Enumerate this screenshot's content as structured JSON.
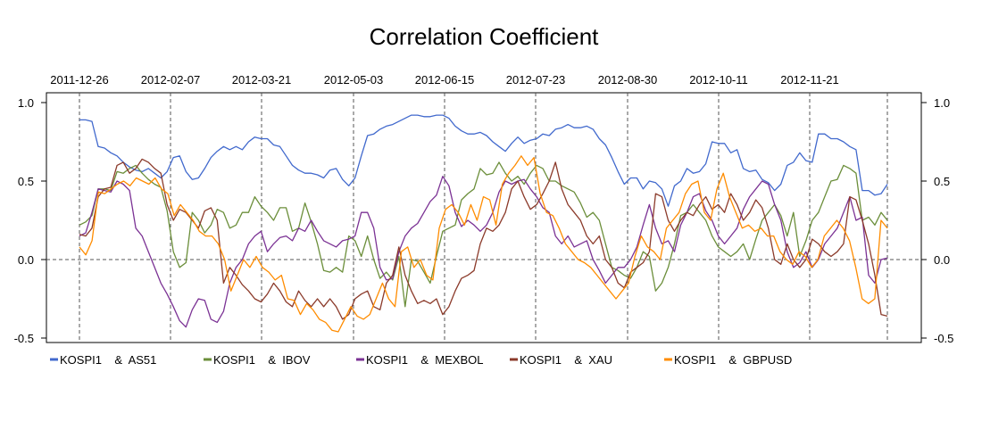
{
  "chart_data": {
    "type": "line",
    "title": "Correlation Coefficient",
    "x_tick_labels": [
      "2011-12-26",
      "2012-02-07",
      "2012-03-21",
      "2012-05-03",
      "2012-06-15",
      "2012-07-23",
      "2012-08-30",
      "2012-10-11",
      "2012-11-21"
    ],
    "y_ticks": [
      "-0.5",
      "0.0",
      "0.5",
      "1.0"
    ],
    "ylim": [
      -0.5,
      1.0
    ],
    "grid": "dashed vertical lines at date ticks, dashed horizontal line at 0.0",
    "legend_placement": "bottom",
    "series": [
      {
        "name": "KOSPI1    &  AS51",
        "color": "#4169cd",
        "values": [
          0.89,
          0.89,
          0.88,
          0.72,
          0.71,
          0.68,
          0.66,
          0.62,
          0.59,
          0.57,
          0.56,
          0.58,
          0.55,
          0.52,
          0.56,
          0.65,
          0.66,
          0.56,
          0.51,
          0.52,
          0.58,
          0.65,
          0.69,
          0.72,
          0.7,
          0.72,
          0.7,
          0.75,
          0.78,
          0.77,
          0.77,
          0.73,
          0.72,
          0.66,
          0.6,
          0.57,
          0.55,
          0.55,
          0.54,
          0.52,
          0.57,
          0.58,
          0.51,
          0.47,
          0.52,
          0.66,
          0.79,
          0.8,
          0.83,
          0.85,
          0.86,
          0.88,
          0.9,
          0.92,
          0.92,
          0.91,
          0.91,
          0.92,
          0.92,
          0.9,
          0.85,
          0.82,
          0.8,
          0.8,
          0.81,
          0.79,
          0.75,
          0.72,
          0.69,
          0.74,
          0.78,
          0.74,
          0.76,
          0.77,
          0.8,
          0.79,
          0.83,
          0.84,
          0.86,
          0.84,
          0.84,
          0.85,
          0.83,
          0.77,
          0.73,
          0.65,
          0.56,
          0.48,
          0.52,
          0.52,
          0.45,
          0.5,
          0.49,
          0.45,
          0.34,
          0.47,
          0.5,
          0.58,
          0.55,
          0.56,
          0.61,
          0.75,
          0.74,
          0.74,
          0.68,
          0.7,
          0.58,
          0.56,
          0.57,
          0.51,
          0.49,
          0.44,
          0.48,
          0.6,
          0.62,
          0.68,
          0.63,
          0.62,
          0.8,
          0.8,
          0.77,
          0.77,
          0.75,
          0.72,
          0.7,
          0.44,
          0.44,
          0.41,
          0.42,
          0.48
        ]
      },
      {
        "name": "KOSPI1    &  IBOV",
        "color": "#6b8e3a",
        "values": [
          0.22,
          0.24,
          0.28,
          0.45,
          0.45,
          0.44,
          0.56,
          0.55,
          0.58,
          0.6,
          0.55,
          0.51,
          0.48,
          0.46,
          0.31,
          0.05,
          -0.05,
          -0.02,
          0.3,
          0.25,
          0.17,
          0.22,
          0.32,
          0.3,
          0.2,
          0.22,
          0.3,
          0.3,
          0.4,
          0.34,
          0.3,
          0.25,
          0.33,
          0.33,
          0.18,
          0.2,
          0.36,
          0.24,
          0.1,
          -0.07,
          -0.08,
          -0.05,
          -0.08,
          0.15,
          0.12,
          0.02,
          0.15,
          0.0,
          -0.12,
          -0.08,
          -0.13,
          0.02,
          -0.3,
          0.0,
          -0.01,
          -0.08,
          -0.15,
          0.02,
          0.18,
          0.2,
          0.22,
          0.38,
          0.42,
          0.45,
          0.58,
          0.54,
          0.55,
          0.62,
          0.55,
          0.5,
          0.53,
          0.48,
          0.55,
          0.6,
          0.58,
          0.5,
          0.5,
          0.47,
          0.45,
          0.43,
          0.36,
          0.27,
          0.3,
          0.25,
          0.1,
          -0.05,
          -0.07,
          -0.1,
          -0.12,
          -0.05,
          0.05,
          0.02,
          -0.2,
          -0.15,
          -0.05,
          0.1,
          0.28,
          0.3,
          0.35,
          0.3,
          0.25,
          0.15,
          0.08,
          0.05,
          0.02,
          0.05,
          0.1,
          0.0,
          0.13,
          0.25,
          0.3,
          0.35,
          0.28,
          0.15,
          0.3,
          0.02,
          0.12,
          0.25,
          0.3,
          0.4,
          0.5,
          0.51,
          0.6,
          0.58,
          0.55,
          0.25,
          0.27,
          0.22,
          0.3,
          0.25
        ]
      },
      {
        "name": "KOSPI1    &  MEXBOL",
        "color": "#7b3294",
        "values": [
          0.15,
          0.17,
          0.3,
          0.45,
          0.44,
          0.43,
          0.5,
          0.48,
          0.44,
          0.2,
          0.15,
          0.05,
          -0.05,
          -0.15,
          -0.22,
          -0.3,
          -0.39,
          -0.43,
          -0.32,
          -0.25,
          -0.26,
          -0.38,
          -0.4,
          -0.33,
          -0.15,
          -0.05,
          0.0,
          0.1,
          0.15,
          0.18,
          0.05,
          0.1,
          0.14,
          0.15,
          0.12,
          0.2,
          0.18,
          0.25,
          0.18,
          0.12,
          0.1,
          0.08,
          0.12,
          0.13,
          0.15,
          0.3,
          0.3,
          0.2,
          -0.05,
          -0.13,
          -0.12,
          0.05,
          0.15,
          0.2,
          0.23,
          0.3,
          0.37,
          0.41,
          0.53,
          0.47,
          0.3,
          0.21,
          0.25,
          0.22,
          0.18,
          0.22,
          0.3,
          0.43,
          0.5,
          0.48,
          0.5,
          0.51,
          0.45,
          0.4,
          0.33,
          0.3,
          0.15,
          0.1,
          0.15,
          0.08,
          0.1,
          0.12,
          0.0,
          -0.07,
          -0.15,
          -0.1,
          -0.05,
          -0.05,
          0.0,
          0.08,
          0.22,
          0.35,
          0.2,
          0.1,
          0.12,
          0.05,
          0.22,
          0.3,
          0.4,
          0.42,
          0.31,
          0.25,
          0.15,
          0.1,
          0.15,
          0.2,
          0.32,
          0.4,
          0.45,
          0.5,
          0.48,
          0.35,
          0.25,
          0.05,
          -0.05,
          -0.02,
          0.05,
          -0.05,
          0.0,
          0.1,
          0.15,
          0.2,
          0.3,
          0.4,
          0.25,
          0.27,
          -0.1,
          -0.15,
          0.0,
          0.01
        ]
      },
      {
        "name": "KOSPI1    &  XAU",
        "color": "#8b3a2a",
        "values": [
          0.16,
          0.15,
          0.2,
          0.4,
          0.45,
          0.46,
          0.6,
          0.62,
          0.55,
          0.58,
          0.64,
          0.62,
          0.58,
          0.55,
          0.35,
          0.25,
          0.32,
          0.3,
          0.25,
          0.2,
          0.31,
          0.33,
          0.25,
          -0.15,
          -0.05,
          -0.1,
          -0.16,
          -0.2,
          -0.25,
          -0.27,
          -0.22,
          -0.15,
          -0.2,
          -0.27,
          -0.3,
          -0.2,
          -0.26,
          -0.3,
          -0.25,
          -0.3,
          -0.25,
          -0.3,
          -0.38,
          -0.35,
          -0.25,
          -0.22,
          -0.2,
          -0.3,
          -0.32,
          -0.15,
          -0.1,
          0.08,
          -0.1,
          -0.2,
          -0.28,
          -0.26,
          -0.28,
          -0.25,
          -0.35,
          -0.3,
          -0.2,
          -0.12,
          -0.1,
          -0.07,
          0.1,
          0.2,
          0.18,
          0.22,
          0.3,
          0.45,
          0.5,
          0.4,
          0.32,
          0.35,
          0.42,
          0.5,
          0.62,
          0.45,
          0.35,
          0.3,
          0.25,
          0.15,
          0.1,
          0.15,
          0.0,
          -0.05,
          -0.15,
          -0.18,
          -0.08,
          -0.05,
          -0.02,
          0.05,
          0.42,
          0.4,
          0.25,
          0.18,
          0.25,
          0.3,
          0.28,
          0.35,
          0.4,
          0.32,
          0.35,
          0.3,
          0.42,
          0.35,
          0.25,
          0.3,
          0.38,
          0.33,
          0.2,
          0.0,
          -0.03,
          0.1,
          0.0,
          -0.05,
          0.0,
          0.13,
          0.1,
          0.05,
          0.02,
          0.05,
          0.1,
          0.4,
          0.38,
          0.25,
          0.1,
          -0.1,
          -0.35,
          -0.36
        ]
      },
      {
        "name": "KOSPI1    &  GBPUSD",
        "color": "#ff8c00",
        "values": [
          0.08,
          0.03,
          0.12,
          0.43,
          0.42,
          0.45,
          0.48,
          0.5,
          0.47,
          0.52,
          0.5,
          0.48,
          0.52,
          0.45,
          0.42,
          0.28,
          0.35,
          0.3,
          0.25,
          0.18,
          0.15,
          0.15,
          0.1,
          0.0,
          -0.2,
          -0.1,
          0.0,
          -0.05,
          0.02,
          -0.05,
          -0.08,
          -0.13,
          -0.1,
          -0.25,
          -0.26,
          -0.35,
          -0.28,
          -0.32,
          -0.38,
          -0.4,
          -0.45,
          -0.46,
          -0.38,
          -0.3,
          -0.36,
          -0.38,
          -0.35,
          -0.25,
          -0.15,
          -0.25,
          -0.3,
          0.05,
          0.08,
          -0.05,
          0.0,
          -0.1,
          -0.13,
          0.2,
          0.32,
          0.35,
          0.3,
          0.22,
          0.35,
          0.25,
          0.4,
          0.38,
          0.22,
          0.48,
          0.55,
          0.6,
          0.66,
          0.6,
          0.65,
          0.42,
          0.3,
          0.28,
          0.2,
          0.1,
          0.05,
          0.0,
          -0.02,
          -0.05,
          -0.1,
          -0.15,
          -0.2,
          -0.25,
          -0.2,
          -0.15,
          0.02,
          0.15,
          0.08,
          0.05,
          0.0,
          0.2,
          0.25,
          0.3,
          0.42,
          0.48,
          0.5,
          0.3,
          0.25,
          0.45,
          0.55,
          0.4,
          0.3,
          0.2,
          0.22,
          0.18,
          0.2,
          0.15,
          0.15,
          0.05,
          0.0,
          -0.03,
          0.05,
          0.02,
          -0.05,
          0.0,
          0.15,
          0.2,
          0.25,
          0.2,
          0.12,
          -0.05,
          -0.25,
          -0.28,
          -0.25,
          0.25,
          0.2
        ]
      }
    ]
  }
}
